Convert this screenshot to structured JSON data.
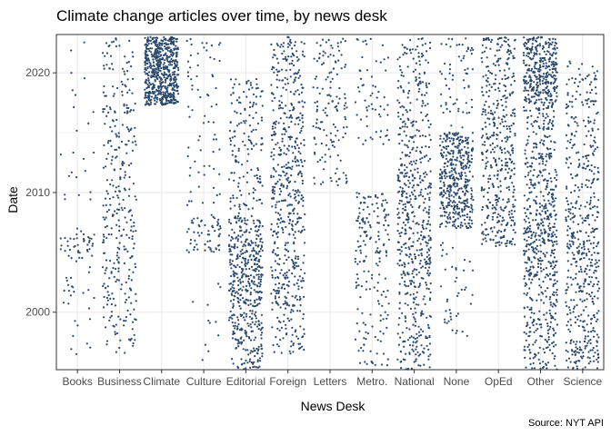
{
  "chart_data": {
    "type": "scatter",
    "title": "Climate change articles over time, by news desk",
    "xlabel": "News Desk",
    "ylabel": "Date",
    "caption": "Source: NYT API",
    "categories": [
      "Books",
      "Business",
      "Climate",
      "Culture",
      "Editorial",
      "Foreign",
      "Letters",
      "Metro.",
      "National",
      "None",
      "OpEd",
      "Other",
      "Science"
    ],
    "y_ticks": [
      2000,
      2010,
      2020
    ],
    "ylim": [
      1995.2,
      2023.2
    ],
    "grid": true,
    "point_color": "#2c4a6e",
    "jitter": "horizontal",
    "series": [
      {
        "name": "Books",
        "count": 90,
        "segments": [
          [
            1995.5,
            2004.5,
            0.3
          ],
          [
            2004.5,
            2007,
            0.45
          ],
          [
            2008,
            2023,
            0.25
          ]
        ]
      },
      {
        "name": "Business",
        "count": 330,
        "segments": [
          [
            1996.5,
            2000.5,
            0.12
          ],
          [
            2000.5,
            2010.5,
            0.45
          ],
          [
            2010.5,
            2017.5,
            0.28
          ],
          [
            2018,
            2023,
            0.15
          ]
        ]
      },
      {
        "name": "Climate",
        "count": 620,
        "segments": [
          [
            2017.3,
            2023,
            1
          ]
        ]
      },
      {
        "name": "Culture",
        "count": 140,
        "segments": [
          [
            1996,
            2004,
            0.08
          ],
          [
            2005,
            2008,
            0.42
          ],
          [
            2008,
            2023,
            0.5
          ]
        ]
      },
      {
        "name": "Editorial",
        "count": 620,
        "segments": [
          [
            1995.2,
            2002,
            0.35
          ],
          [
            2002,
            2008,
            0.4
          ],
          [
            2008,
            2019.5,
            0.25
          ]
        ]
      },
      {
        "name": "Foreign",
        "count": 580,
        "segments": [
          [
            1996.5,
            2000.5,
            0.1
          ],
          [
            2000.5,
            2011,
            0.45
          ],
          [
            2011,
            2023,
            0.45
          ]
        ]
      },
      {
        "name": "Letters",
        "count": 140,
        "segments": [
          [
            2010.5,
            2023,
            1
          ]
        ]
      },
      {
        "name": "Metro.",
        "count": 240,
        "segments": [
          [
            1995.5,
            2004,
            0.3
          ],
          [
            2004,
            2010,
            0.45
          ],
          [
            2014,
            2023,
            0.25
          ]
        ]
      },
      {
        "name": "National",
        "count": 600,
        "segments": [
          [
            1995.2,
            2003,
            0.25
          ],
          [
            2003,
            2012,
            0.45
          ],
          [
            2012,
            2023,
            0.3
          ]
        ]
      },
      {
        "name": "None",
        "count": 520,
        "segments": [
          [
            1998,
            2006,
            0.08
          ],
          [
            2007,
            2015,
            0.8
          ],
          [
            2015,
            2023,
            0.12
          ]
        ]
      },
      {
        "name": "OpEd",
        "count": 440,
        "segments": [
          [
            2005.5,
            2012,
            0.4
          ],
          [
            2012,
            2023,
            0.6
          ]
        ]
      },
      {
        "name": "Other",
        "count": 950,
        "segments": [
          [
            1995.2,
            2003,
            0.18
          ],
          [
            2003,
            2009,
            0.25
          ],
          [
            2009,
            2017.5,
            0.22
          ],
          [
            2017.5,
            2023,
            0.35
          ]
        ]
      },
      {
        "name": "Science",
        "count": 520,
        "segments": [
          [
            1995.2,
            2002,
            0.3
          ],
          [
            2002,
            2009,
            0.35
          ],
          [
            2009,
            2021,
            0.35
          ]
        ]
      }
    ]
  }
}
